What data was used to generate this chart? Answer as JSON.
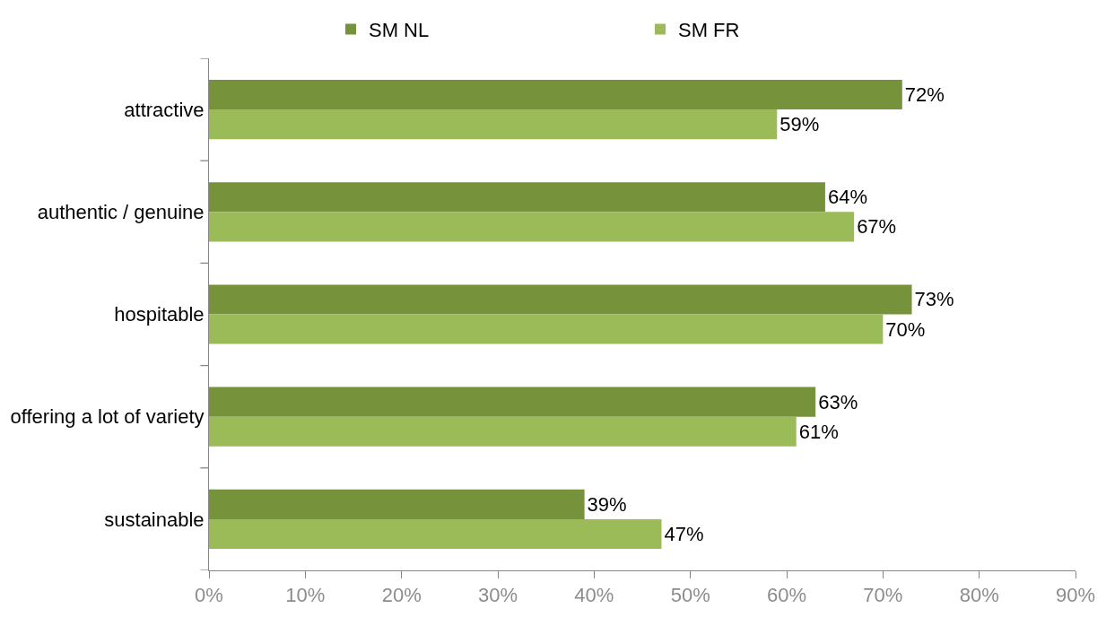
{
  "chart_data": {
    "type": "bar",
    "orientation": "horizontal",
    "categories": [
      "attractive",
      "authentic / genuine",
      "hospitable",
      "offering a lot of variety",
      "sustainable"
    ],
    "series": [
      {
        "name": "SM NL",
        "color": "#76933c",
        "values": [
          72,
          64,
          73,
          63,
          39
        ],
        "value_labels": [
          "72%",
          "64%",
          "73%",
          "63%",
          "39%"
        ]
      },
      {
        "name": "SM FR",
        "color": "#9bbb59",
        "values": [
          59,
          67,
          70,
          61,
          47
        ],
        "value_labels": [
          "59%",
          "67%",
          "70%",
          "61%",
          "47%"
        ]
      }
    ],
    "xlim": [
      0,
      90
    ],
    "xticks": [
      {
        "value": 0,
        "label": "0%"
      },
      {
        "value": 10,
        "label": "10%"
      },
      {
        "value": 20,
        "label": "20%"
      },
      {
        "value": 30,
        "label": "30%"
      },
      {
        "value": 40,
        "label": "40%"
      },
      {
        "value": 50,
        "label": "50%"
      },
      {
        "value": 60,
        "label": "60%"
      },
      {
        "value": 70,
        "label": "70%"
      },
      {
        "value": 80,
        "label": "80%"
      },
      {
        "value": 90,
        "label": "90%"
      }
    ],
    "grid": false,
    "legend": "top"
  }
}
